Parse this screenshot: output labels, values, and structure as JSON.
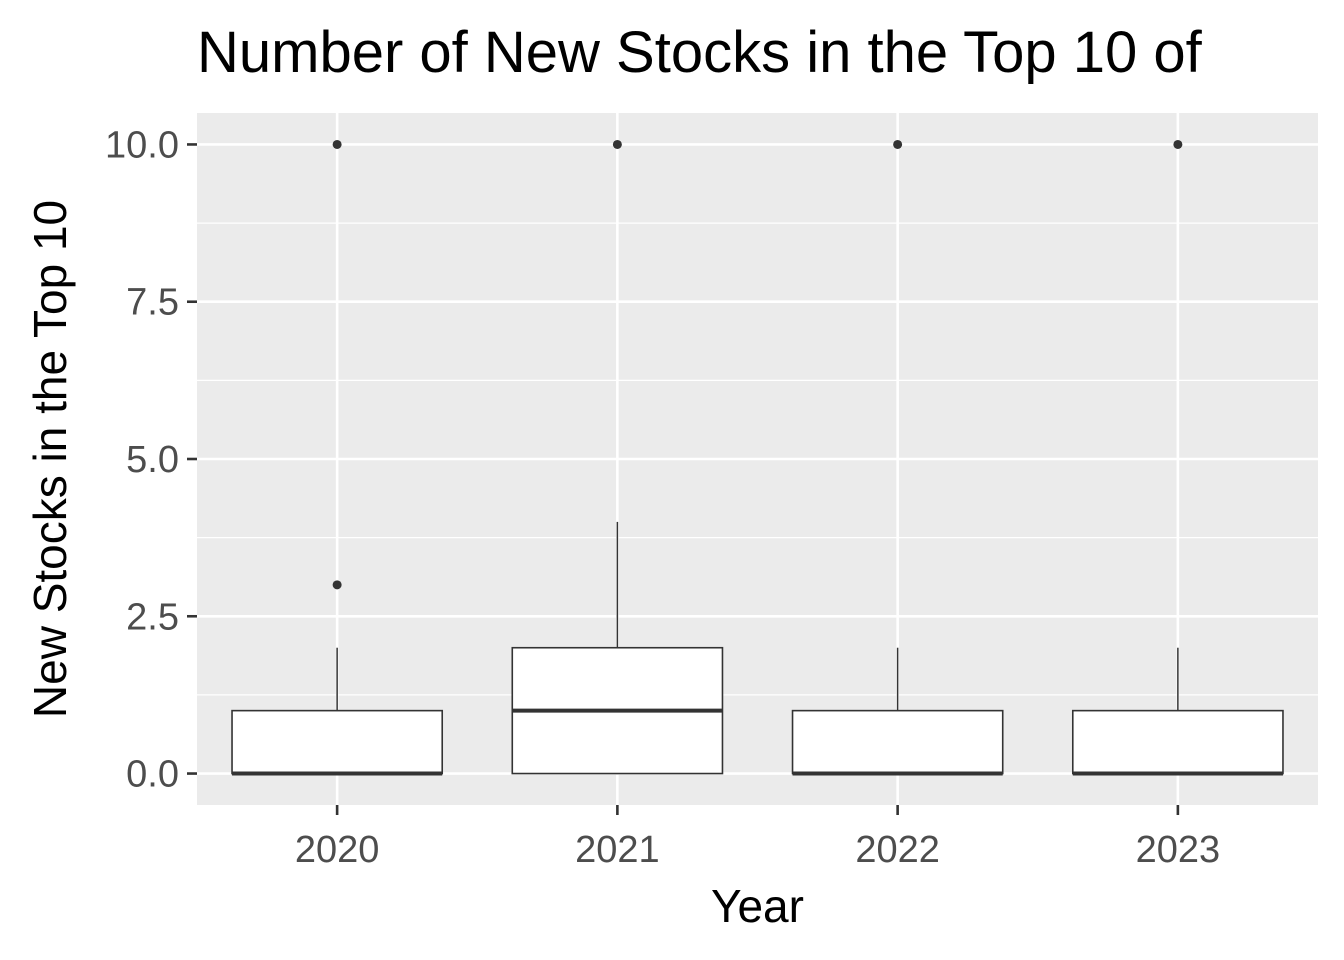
{
  "chart_data": {
    "type": "boxplot",
    "title": "Number of New Stocks in the Top 10 of",
    "xlabel": "Year",
    "ylabel": "New Stocks in the Top 10",
    "categories": [
      "2020",
      "2021",
      "2022",
      "2023"
    ],
    "ylim": [
      -0.5,
      10.5
    ],
    "y_ticks": [
      0.0,
      2.5,
      5.0,
      7.5,
      10.0
    ],
    "y_tick_labels": [
      "0.0",
      "2.5",
      "5.0",
      "7.5",
      "10.0"
    ],
    "grid": true,
    "boxes": [
      {
        "category": "2020",
        "lower_whisker": 0,
        "q1": 0,
        "median": 0,
        "q3": 1,
        "upper_whisker": 2,
        "outliers": [
          3,
          10
        ]
      },
      {
        "category": "2021",
        "lower_whisker": 0,
        "q1": 0,
        "median": 1,
        "q3": 2,
        "upper_whisker": 4,
        "outliers": [
          10
        ]
      },
      {
        "category": "2022",
        "lower_whisker": 0,
        "q1": 0,
        "median": 0,
        "q3": 1,
        "upper_whisker": 2,
        "outliers": [
          10
        ]
      },
      {
        "category": "2023",
        "lower_whisker": 0,
        "q1": 0,
        "median": 0,
        "q3": 1,
        "upper_whisker": 2,
        "outliers": [
          10
        ]
      }
    ],
    "colors": {
      "panel_background": "#EBEBEB",
      "grid_line": "#FFFFFF",
      "box_fill": "#FFFFFF",
      "box_line": "#333333",
      "outlier": "#333333",
      "tick_text": "#4D4D4D"
    }
  }
}
